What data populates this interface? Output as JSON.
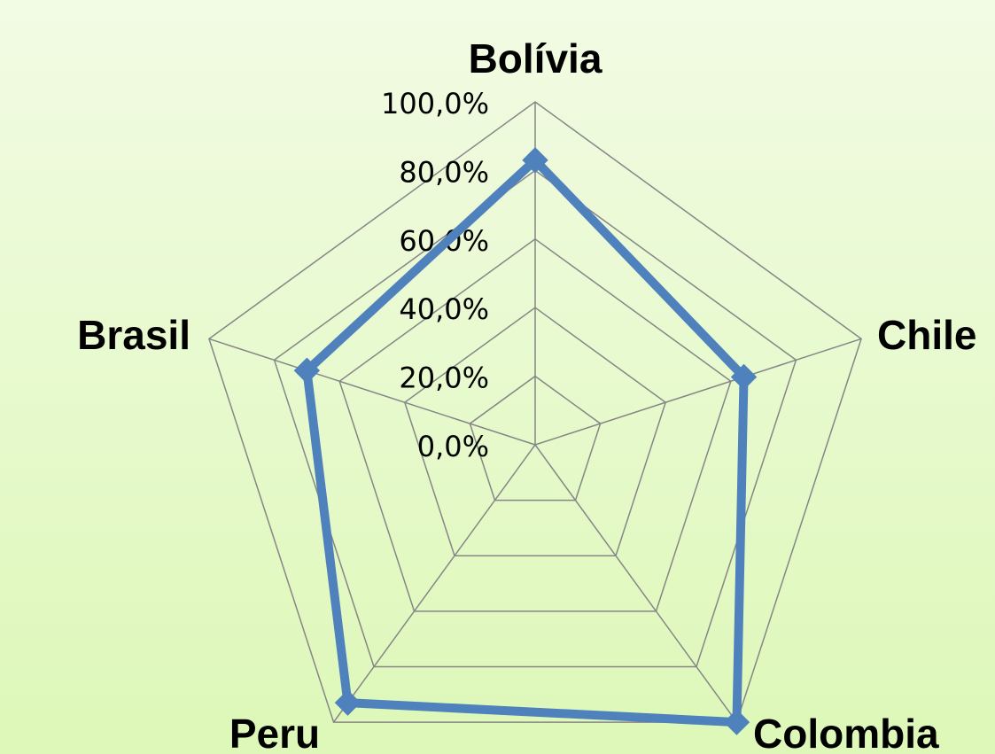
{
  "chart_data": {
    "type": "radar",
    "categories": [
      "Bolívia",
      "Chile",
      "Colombia",
      "Peru",
      "Brasil"
    ],
    "series": [
      {
        "color": "#4f81bd",
        "values": [
          83,
          64,
          100,
          93,
          70
        ]
      }
    ],
    "ylim": [
      0,
      100
    ],
    "yticks": [
      {
        "value": 0,
        "label": "0,0%"
      },
      {
        "value": 20,
        "label": "20,0%"
      },
      {
        "value": 40,
        "label": "40,0%"
      },
      {
        "value": 60,
        "label": "60,0%"
      },
      {
        "value": 80,
        "label": "80,0%"
      },
      {
        "value": 100,
        "label": "100,0%"
      }
    ],
    "grid": true
  }
}
